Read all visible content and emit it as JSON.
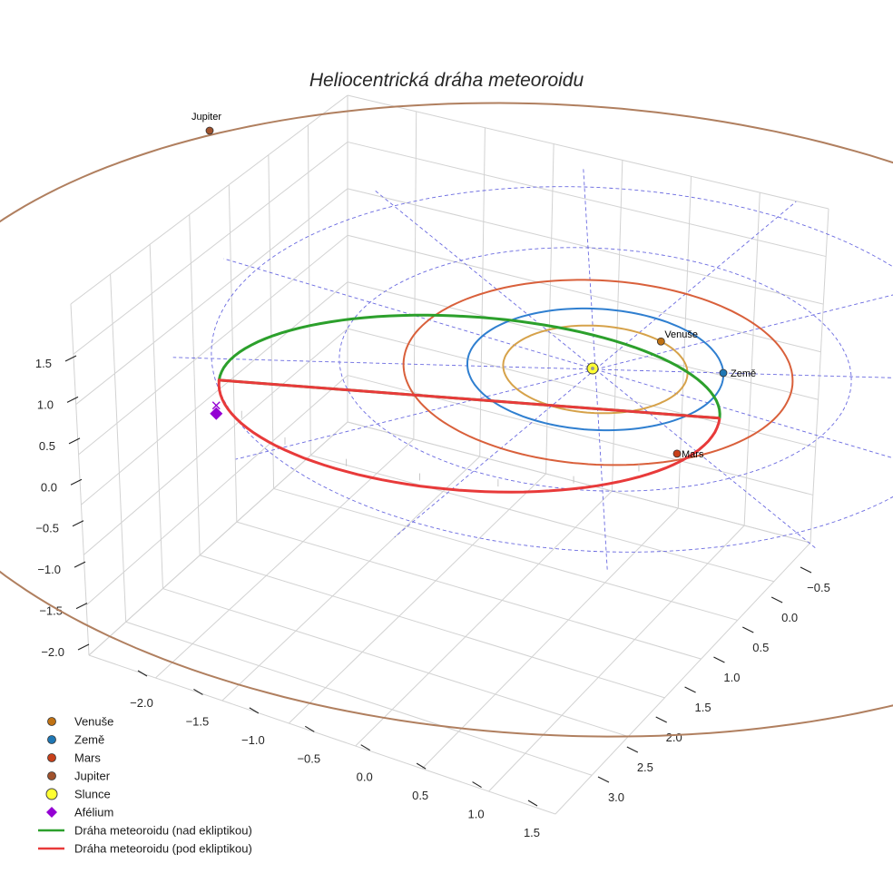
{
  "chart_data": {
    "type": "line",
    "projection": "3d",
    "title": "Heliocentrická dráha meteoroidu",
    "colors": {
      "venus": "#d6a24a",
      "venus_marker": "#c07214",
      "earth": "#2f7fd0",
      "earth_marker": "#1f77b4",
      "mars": "#d9603b",
      "mars_marker": "#c8401a",
      "jupiter": "#b07f5f",
      "jupiter_marker": "#a0522d",
      "sun": "#ffff33",
      "aphelion": "#9400d3",
      "meteoroid_above": "#2ca02c",
      "meteoroid_below": "#e83a3a",
      "reference_grid": "#6a6ae0"
    },
    "axes": {
      "x": {
        "ticks": [
          -2.0,
          -1.5,
          -1.0,
          -0.5,
          0.0,
          0.5,
          1.0,
          1.5
        ],
        "tick_labels": [
          "−2.0",
          "−1.5",
          "−1.0",
          "−0.5",
          "0.0",
          "0.5",
          "1.0",
          "1.5"
        ]
      },
      "y": {
        "ticks": [
          -0.5,
          0.0,
          0.5,
          1.0,
          1.5,
          2.0,
          2.5,
          3.0
        ],
        "tick_labels": [
          "−0.5",
          "0.0",
          "0.5",
          "1.0",
          "1.5",
          "2.0",
          "2.5",
          "3.0"
        ]
      },
      "z": {
        "ticks": [
          -2.0,
          -1.5,
          -1.0,
          -0.5,
          0.0,
          0.5,
          1.0,
          1.5
        ],
        "tick_labels": [
          "−2.0",
          "−1.5",
          "−1.0",
          "−0.5",
          "0.0",
          "0.5",
          "1.0",
          "1.5"
        ]
      }
    },
    "series": [
      {
        "name": "Venuše",
        "kind": "orbit",
        "radius_au": 0.72
      },
      {
        "name": "Země",
        "kind": "orbit",
        "radius_au": 1.0
      },
      {
        "name": "Mars",
        "kind": "orbit",
        "radius_au": 1.52
      },
      {
        "name": "Jupiter",
        "kind": "orbit",
        "radius_au": 5.2
      },
      {
        "name": "Dráha meteoroidu (nad ekliptikou)",
        "kind": "trajectory"
      },
      {
        "name": "Dráha meteoroidu (pod ekliptikou)",
        "kind": "trajectory"
      }
    ],
    "planet_labels": [
      "Venuše",
      "Země",
      "Mars",
      "Jupiter"
    ],
    "legend": [
      {
        "label": "Venuše",
        "marker": "circle",
        "color": "#c07214"
      },
      {
        "label": "Země",
        "marker": "circle",
        "color": "#1f77b4"
      },
      {
        "label": "Mars",
        "marker": "circle",
        "color": "#c8401a"
      },
      {
        "label": "Jupiter",
        "marker": "circle",
        "color": "#a0522d"
      },
      {
        "label": "Slunce",
        "marker": "circle-large",
        "color": "#ffff33"
      },
      {
        "label": "Afélium",
        "marker": "diamond",
        "color": "#9400d3"
      },
      {
        "label": "Dráha meteoroidu (nad ekliptikou)",
        "marker": "line",
        "color": "#2ca02c"
      },
      {
        "label": "Dráha meteoroidu (pod ekliptikou)",
        "marker": "line",
        "color": "#e83a3a"
      }
    ],
    "legend_position": "bottom-left"
  }
}
